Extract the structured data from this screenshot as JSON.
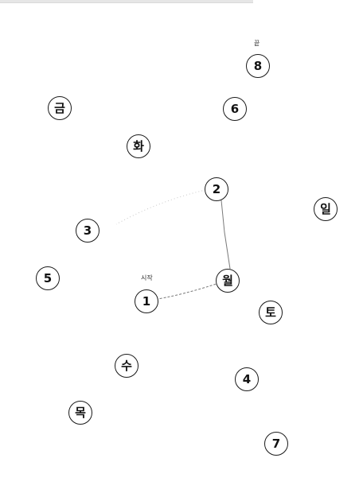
{
  "start_label": "시작",
  "end_label": "끝",
  "nodes": {
    "n1": "1",
    "n2": "2",
    "n3": "3",
    "n4": "4",
    "n5": "5",
    "n6": "6",
    "n7": "7",
    "n8": "8",
    "sun": "일",
    "mon": "월",
    "tue": "화",
    "wed": "수",
    "thu": "목",
    "fri": "금",
    "sat": "토"
  },
  "drawn_path": [
    "1",
    "월",
    "2",
    "3"
  ],
  "colors": {
    "node_border": "#1a1a1a",
    "node_text": "#111111",
    "path_stroke": "#7a7a7a",
    "path_faint": "#c8c8c8",
    "background": "#ffffff"
  }
}
